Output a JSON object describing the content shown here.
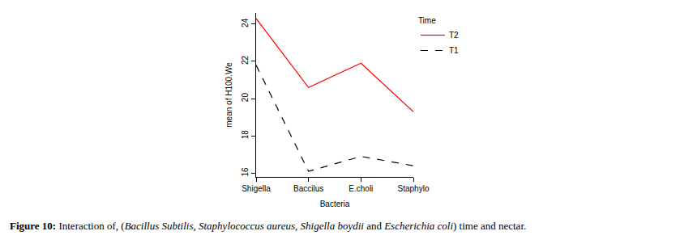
{
  "chart_data": {
    "type": "line",
    "x_label": "Bacteria",
    "y_label": "mean of H100.We",
    "categories": [
      "Shigella",
      "Baccilus",
      "E.choli",
      "Staphylo"
    ],
    "series": [
      {
        "name": "T2",
        "color": "#ff0000",
        "line_style": "solid",
        "values": [
          24.3,
          20.6,
          21.9,
          19.3
        ]
      },
      {
        "name": "T1",
        "color": "#000000",
        "line_style": "dash",
        "values": [
          21.8,
          16.1,
          16.9,
          16.4
        ]
      }
    ],
    "legend_title": "Time",
    "legend": "top-right",
    "ylim": [
      15.8,
      24.6
    ],
    "yticks": [
      16,
      18,
      20,
      22,
      24
    ],
    "grid": false
  },
  "caption": [
    {
      "text": "Figure 10:",
      "style": "bold"
    },
    {
      "text": " Interaction of, (",
      "style": "normal"
    },
    {
      "text": "Bacillus Subtilis, Staphylococcus aureus, Shigella boydii",
      "style": "italic"
    },
    {
      "text": " and ",
      "style": "normal"
    },
    {
      "text": "Escherichia coli",
      "style": "italic"
    },
    {
      "text": ") time and nectar.",
      "style": "normal"
    }
  ]
}
